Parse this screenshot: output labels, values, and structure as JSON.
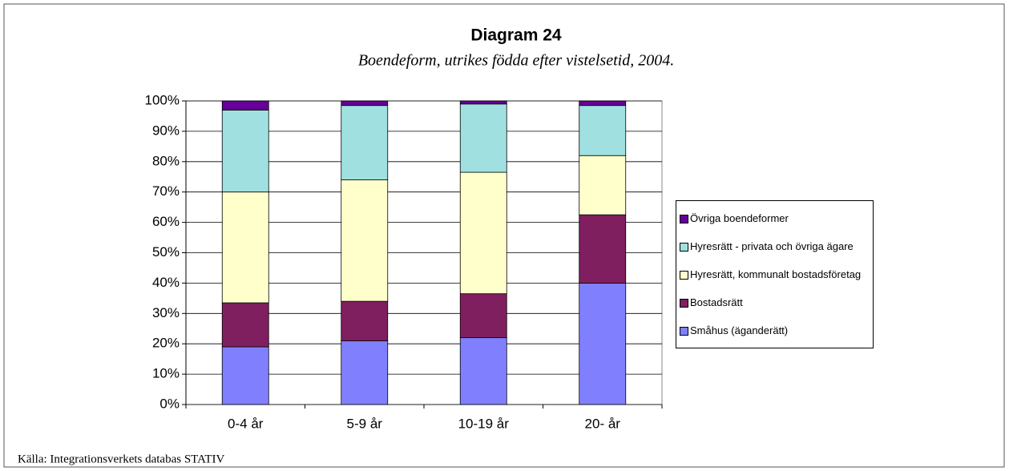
{
  "chart_data": {
    "type": "stacked_bar",
    "title": "Diagram 24",
    "subtitle": "Boendeform, utrikes födda efter vistelsetid, 2004.",
    "source": "Källa: Integrationsverkets databas STATIV",
    "categories": [
      "0-4 år",
      "5-9 år",
      "10-19 år",
      "20- år"
    ],
    "series": [
      {
        "name": "Småhus (äganderätt)",
        "color": "#8080ff",
        "values": [
          19,
          21,
          22,
          40
        ]
      },
      {
        "name": "Bostadsrätt",
        "color": "#7f1f5f",
        "values": [
          14.5,
          13,
          14.5,
          22.5
        ]
      },
      {
        "name": "Hyresrätt, kommunalt bostadsföretag",
        "color": "#ffffcc",
        "values": [
          36.5,
          40,
          40,
          19.5
        ]
      },
      {
        "name": "Hyresrätt - privata och övriga ägare",
        "color": "#a0e0e0",
        "values": [
          27,
          24.5,
          22.5,
          16.5
        ]
      },
      {
        "name": "Övriga boendeformer",
        "color": "#660099",
        "values": [
          3,
          1.5,
          1,
          1.5
        ]
      }
    ],
    "ylim": [
      0,
      100
    ],
    "yticks": [
      {
        "value": 0,
        "label": "0%"
      },
      {
        "value": 10,
        "label": "10%"
      },
      {
        "value": 20,
        "label": "20%"
      },
      {
        "value": 30,
        "label": "30%"
      },
      {
        "value": 40,
        "label": "40%"
      },
      {
        "value": 50,
        "label": "50%"
      },
      {
        "value": 60,
        "label": "60%"
      },
      {
        "value": 70,
        "label": "70%"
      },
      {
        "value": 80,
        "label": "80%"
      },
      {
        "value": 90,
        "label": "90%"
      },
      {
        "value": 100,
        "label": "100%"
      }
    ],
    "grid": true,
    "legend": "right"
  }
}
